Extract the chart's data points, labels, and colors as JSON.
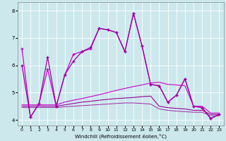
{
  "xlabel": "Windchill (Refroidissement éolien,°C)",
  "background_color": "#cce8ec",
  "grid_color": "#ffffff",
  "line_color1": "#cc00cc",
  "line_color2": "#990099",
  "xlim": [
    -0.5,
    23.5
  ],
  "ylim": [
    3.8,
    8.3
  ],
  "yticks": [
    4,
    5,
    6,
    7,
    8
  ],
  "xticks": [
    0,
    1,
    2,
    3,
    4,
    5,
    6,
    7,
    8,
    9,
    10,
    11,
    12,
    13,
    14,
    15,
    16,
    17,
    18,
    19,
    20,
    21,
    22,
    23
  ],
  "line_jagged1_x": [
    0,
    1,
    2,
    3,
    4,
    5,
    6,
    7,
    8,
    9,
    10,
    11,
    12,
    13,
    14,
    15,
    16,
    17,
    18,
    19,
    20,
    21,
    22,
    23
  ],
  "line_jagged1_y": [
    6.6,
    4.1,
    4.6,
    5.85,
    4.5,
    5.65,
    6.4,
    6.5,
    6.6,
    7.35,
    7.3,
    7.2,
    6.5,
    7.9,
    6.7,
    5.3,
    5.25,
    4.65,
    4.9,
    5.5,
    4.5,
    4.45,
    4.05,
    4.2
  ],
  "line_jagged2_x": [
    0,
    1,
    2,
    3,
    4,
    5,
    6,
    7,
    8,
    9,
    10,
    11,
    12,
    13,
    14,
    15,
    16,
    17,
    18,
    19,
    20,
    21,
    22,
    23
  ],
  "line_jagged2_y": [
    6.0,
    4.1,
    4.6,
    6.3,
    4.5,
    5.65,
    6.15,
    6.5,
    6.65,
    7.35,
    7.3,
    7.2,
    6.5,
    7.9,
    6.7,
    5.3,
    5.25,
    4.65,
    4.9,
    5.5,
    4.5,
    4.45,
    4.05,
    4.2
  ],
  "line_smooth1_x": [
    0,
    1,
    2,
    3,
    4,
    5,
    6,
    7,
    8,
    9,
    10,
    11,
    12,
    13,
    14,
    15,
    16,
    17,
    18,
    19,
    20,
    21,
    22,
    23
  ],
  "line_smooth1_y": [
    4.55,
    4.55,
    4.55,
    4.55,
    4.55,
    4.65,
    4.72,
    4.78,
    4.85,
    4.92,
    5.0,
    5.08,
    5.15,
    5.22,
    5.28,
    5.35,
    5.38,
    5.3,
    5.28,
    5.25,
    4.5,
    4.5,
    4.25,
    4.25
  ],
  "line_smooth2_x": [
    0,
    1,
    2,
    3,
    4,
    5,
    6,
    7,
    8,
    9,
    10,
    11,
    12,
    13,
    14,
    15,
    16,
    17,
    18,
    19,
    20,
    21,
    22,
    23
  ],
  "line_smooth2_y": [
    4.5,
    4.5,
    4.5,
    4.5,
    4.5,
    4.55,
    4.6,
    4.65,
    4.68,
    4.72,
    4.75,
    4.78,
    4.8,
    4.82,
    4.85,
    4.87,
    4.5,
    4.45,
    4.42,
    4.4,
    4.35,
    4.35,
    4.2,
    4.2
  ],
  "line_smooth3_x": [
    0,
    1,
    2,
    3,
    4,
    5,
    6,
    7,
    8,
    9,
    10,
    11,
    12,
    13,
    14,
    15,
    16,
    17,
    18,
    19,
    20,
    21,
    22,
    23
  ],
  "line_smooth3_y": [
    4.45,
    4.45,
    4.45,
    4.45,
    4.45,
    4.48,
    4.5,
    4.52,
    4.54,
    4.56,
    4.58,
    4.6,
    4.62,
    4.62,
    4.6,
    4.58,
    4.4,
    4.35,
    4.32,
    4.3,
    4.28,
    4.28,
    4.15,
    4.15
  ]
}
